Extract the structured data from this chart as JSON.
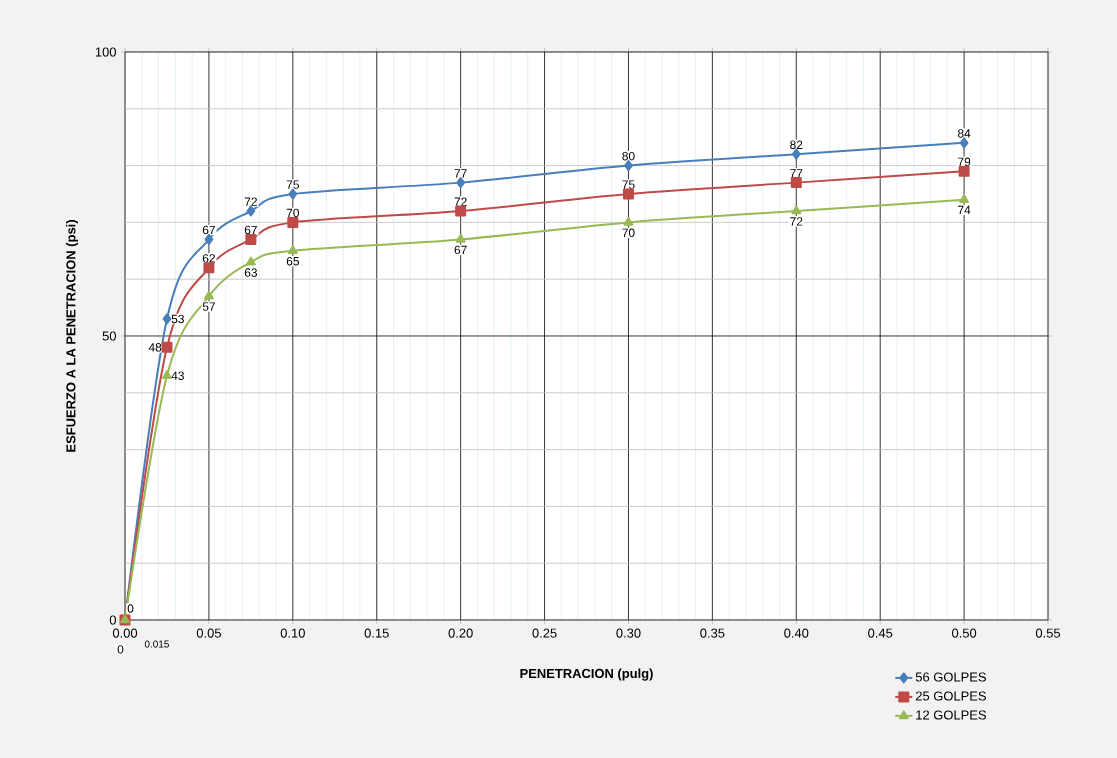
{
  "chart_data": {
    "type": "line",
    "xlabel": "PENETRACION (pulg)",
    "ylabel": "ESFUERZO A LA  PENETRACION (psi)",
    "x": [
      0,
      0.025,
      0.05,
      0.075,
      0.1,
      0.2,
      0.3,
      0.4,
      0.5
    ],
    "series": [
      {
        "name": "56 GOLPES",
        "color": "#4a7ebb",
        "marker": "diamond",
        "values": [
          0,
          53,
          67,
          72,
          75,
          77,
          80,
          82,
          84
        ],
        "value_labels": [
          "0",
          "53",
          "67",
          "72",
          "75",
          "77",
          "80",
          "82",
          "84"
        ]
      },
      {
        "name": "25 GOLPES",
        "color": "#be4b48",
        "marker": "square",
        "values": [
          0,
          48,
          62,
          67,
          70,
          72,
          75,
          77,
          79
        ],
        "value_labels": [
          null,
          "48",
          "62",
          "67",
          "70",
          "72",
          "75",
          "77",
          "79"
        ]
      },
      {
        "name": "12 GOLPES",
        "color": "#98b954",
        "marker": "triangle",
        "values": [
          0,
          43,
          57,
          63,
          65,
          67,
          70,
          72,
          74
        ],
        "value_labels": [
          "0",
          "43",
          "57",
          "63",
          "65",
          "67",
          "70",
          "72",
          "74"
        ]
      }
    ],
    "xlim": [
      0,
      0.55
    ],
    "ylim": [
      0,
      100
    ],
    "xticks": [
      {
        "value": 0,
        "label": "0.00"
      },
      {
        "value": 0.05,
        "label": "0.05"
      },
      {
        "value": 0.1,
        "label": "0.10"
      },
      {
        "value": 0.15,
        "label": "0.15"
      },
      {
        "value": 0.2,
        "label": "0.20"
      },
      {
        "value": 0.25,
        "label": "0.25"
      },
      {
        "value": 0.3,
        "label": "0.30"
      },
      {
        "value": 0.35,
        "label": "0.35"
      },
      {
        "value": 0.4,
        "label": "0.40"
      },
      {
        "value": 0.45,
        "label": "0.45"
      },
      {
        "value": 0.5,
        "label": "0.50"
      },
      {
        "value": 0.55,
        "label": "0.55"
      }
    ],
    "yticks": [
      0,
      50,
      100
    ],
    "annotations": [
      "0.015"
    ],
    "grid": true,
    "legend": "bottom right",
    "line_style": "solid"
  }
}
